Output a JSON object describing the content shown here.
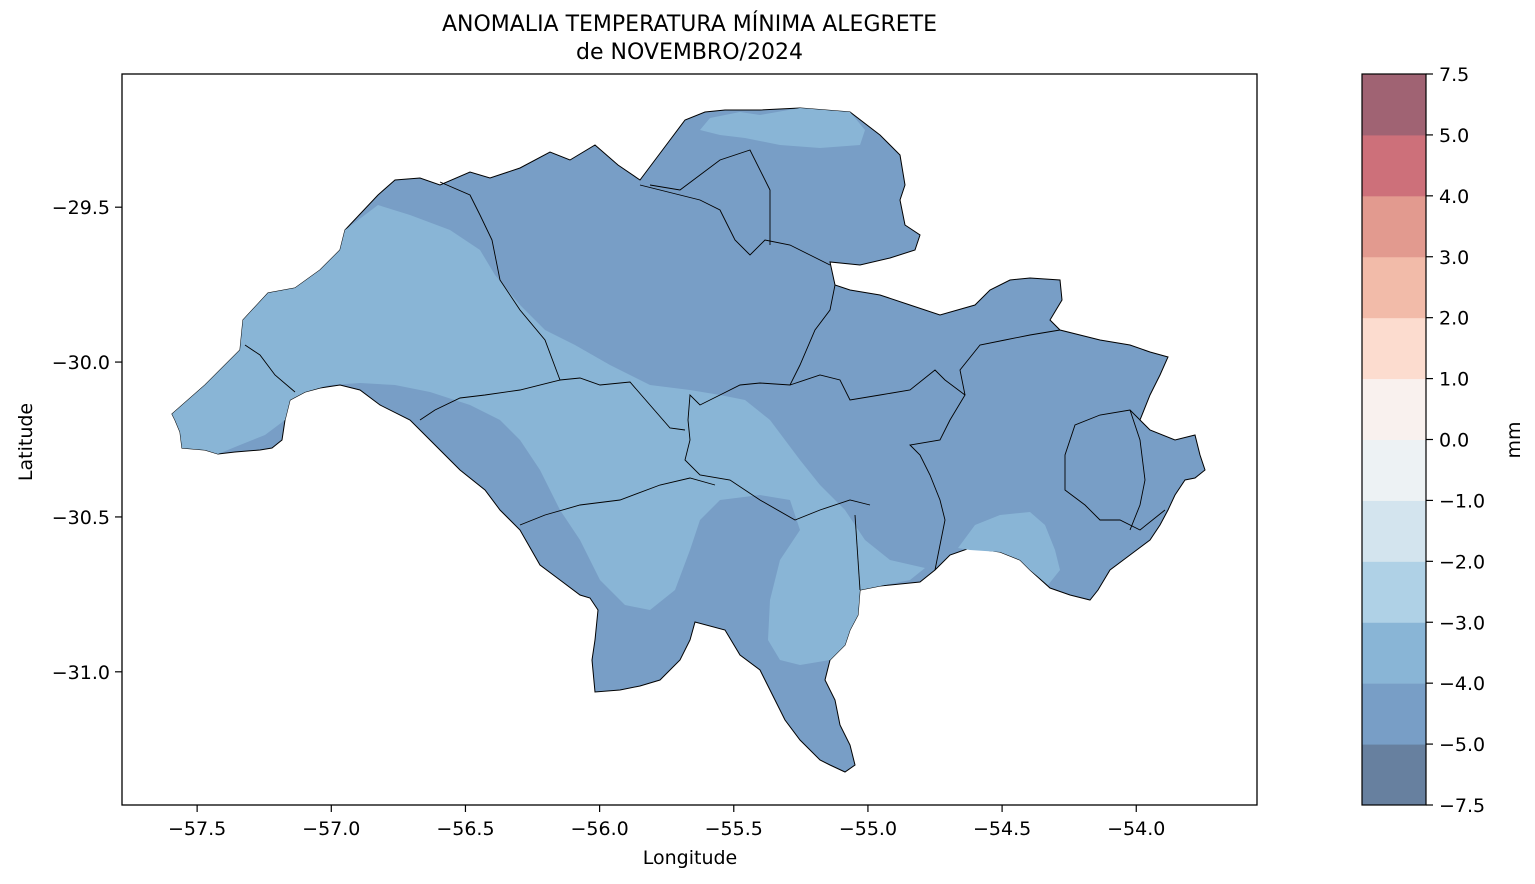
{
  "title": {
    "line1": "ANOMALIA TEMPERATURA MÍNIMA ALEGRETE",
    "line2": "de NOVEMBRO/2024"
  },
  "axes": {
    "xlabel": "Longitude",
    "ylabel": "Latitude",
    "xlim": [
      -57.78,
      -53.55
    ],
    "ylim": [
      -31.43,
      -29.07
    ],
    "xticks": [
      {
        "value": -57.5,
        "label": "−57.5"
      },
      {
        "value": -57.0,
        "label": "−57.0"
      },
      {
        "value": -56.5,
        "label": "−56.5"
      },
      {
        "value": -56.0,
        "label": "−56.0"
      },
      {
        "value": -55.5,
        "label": "−55.5"
      },
      {
        "value": -55.0,
        "label": "−55.0"
      },
      {
        "value": -54.5,
        "label": "−54.5"
      },
      {
        "value": -54.0,
        "label": "−54.0"
      }
    ],
    "yticks": [
      {
        "value": -29.5,
        "label": "−29.5"
      },
      {
        "value": -30.0,
        "label": "−30.0"
      },
      {
        "value": -30.5,
        "label": "−30.5"
      },
      {
        "value": -31.0,
        "label": "−31.0"
      }
    ]
  },
  "colorbar": {
    "label": "mm",
    "ticks": [
      "−7.5",
      "−5.0",
      "−4.0",
      "−3.0",
      "−2.0",
      "−1.0",
      "0.0",
      "1.0",
      "2.0",
      "3.0",
      "4.0",
      "5.0",
      "7.5"
    ],
    "bins": [
      {
        "from": -7.5,
        "to": -5.0,
        "color": "#67809f"
      },
      {
        "from": -5.0,
        "to": -4.0,
        "color": "#789ec6"
      },
      {
        "from": -4.0,
        "to": -3.0,
        "color": "#89b5d6"
      },
      {
        "from": -3.0,
        "to": -2.0,
        "color": "#afd1e6"
      },
      {
        "from": -2.0,
        "to": -1.0,
        "color": "#d3e4ee"
      },
      {
        "from": -1.0,
        "to": 0.0,
        "color": "#edf2f4"
      },
      {
        "from": 0.0,
        "to": 1.0,
        "color": "#f9f1ee"
      },
      {
        "from": 1.0,
        "to": 2.0,
        "color": "#fcdccf"
      },
      {
        "from": 2.0,
        "to": 3.0,
        "color": "#f2bba9"
      },
      {
        "from": 3.0,
        "to": 4.0,
        "color": "#e29a8f"
      },
      {
        "from": 4.0,
        "to": 5.0,
        "color": "#cd707a"
      },
      {
        "from": 5.0,
        "to": 7.5,
        "color": "#a06373"
      }
    ]
  },
  "map": {
    "region_colors": {
      "range_-5_to_-4": "#789ec6",
      "range_-4_to_-3": "#89b5d6"
    }
  }
}
